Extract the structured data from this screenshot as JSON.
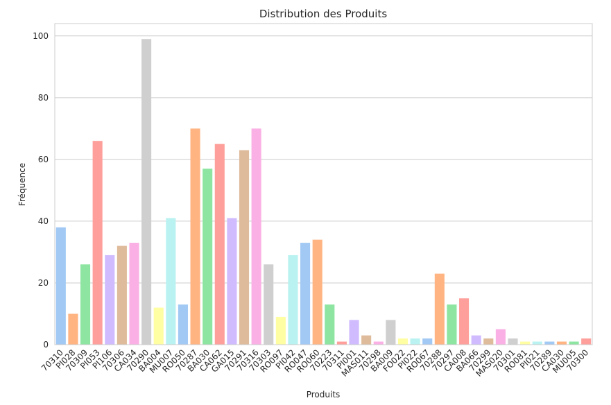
{
  "chart_data": {
    "type": "bar",
    "title": "Distribution des Produits",
    "xlabel": "Produits",
    "ylabel": "Fréquence",
    "ylim": [
      0,
      104
    ],
    "yticks": [
      0,
      20,
      40,
      60,
      80,
      100
    ],
    "grid": "horizontal",
    "categories": [
      "70310",
      "PI028",
      "70309",
      "PI053",
      "PI106",
      "70306",
      "CA034",
      "70290",
      "BA004",
      "MU007",
      "RO050",
      "70287",
      "BA030",
      "CA062",
      "GA015",
      "70291",
      "70316",
      "70303",
      "RO097",
      "PI042",
      "RO047",
      "RO060",
      "70223",
      "70311",
      "PI001",
      "MAS011",
      "70298",
      "BA009",
      "FO022",
      "PI022",
      "RO067",
      "70288",
      "70297",
      "CA008",
      "BA066",
      "70299",
      "MAS020",
      "70301",
      "RO081",
      "PI021",
      "70289",
      "CA030",
      "MU005",
      "70300"
    ],
    "values": [
      38,
      10,
      26,
      66,
      29,
      32,
      33,
      99,
      12,
      41,
      13,
      70,
      57,
      65,
      41,
      63,
      70,
      26,
      9,
      29,
      33,
      34,
      13,
      1,
      8,
      3,
      1,
      8,
      2,
      2,
      2,
      23,
      13,
      15,
      3,
      2,
      5,
      2,
      1,
      1,
      1,
      1,
      1,
      2
    ],
    "colors": [
      "#a1c9f4",
      "#ffb482",
      "#8de5a1",
      "#ff9f9b",
      "#d0bbff",
      "#debb9b",
      "#fab0e4",
      "#cfcfcf",
      "#fffea3",
      "#b9f2f0"
    ]
  }
}
